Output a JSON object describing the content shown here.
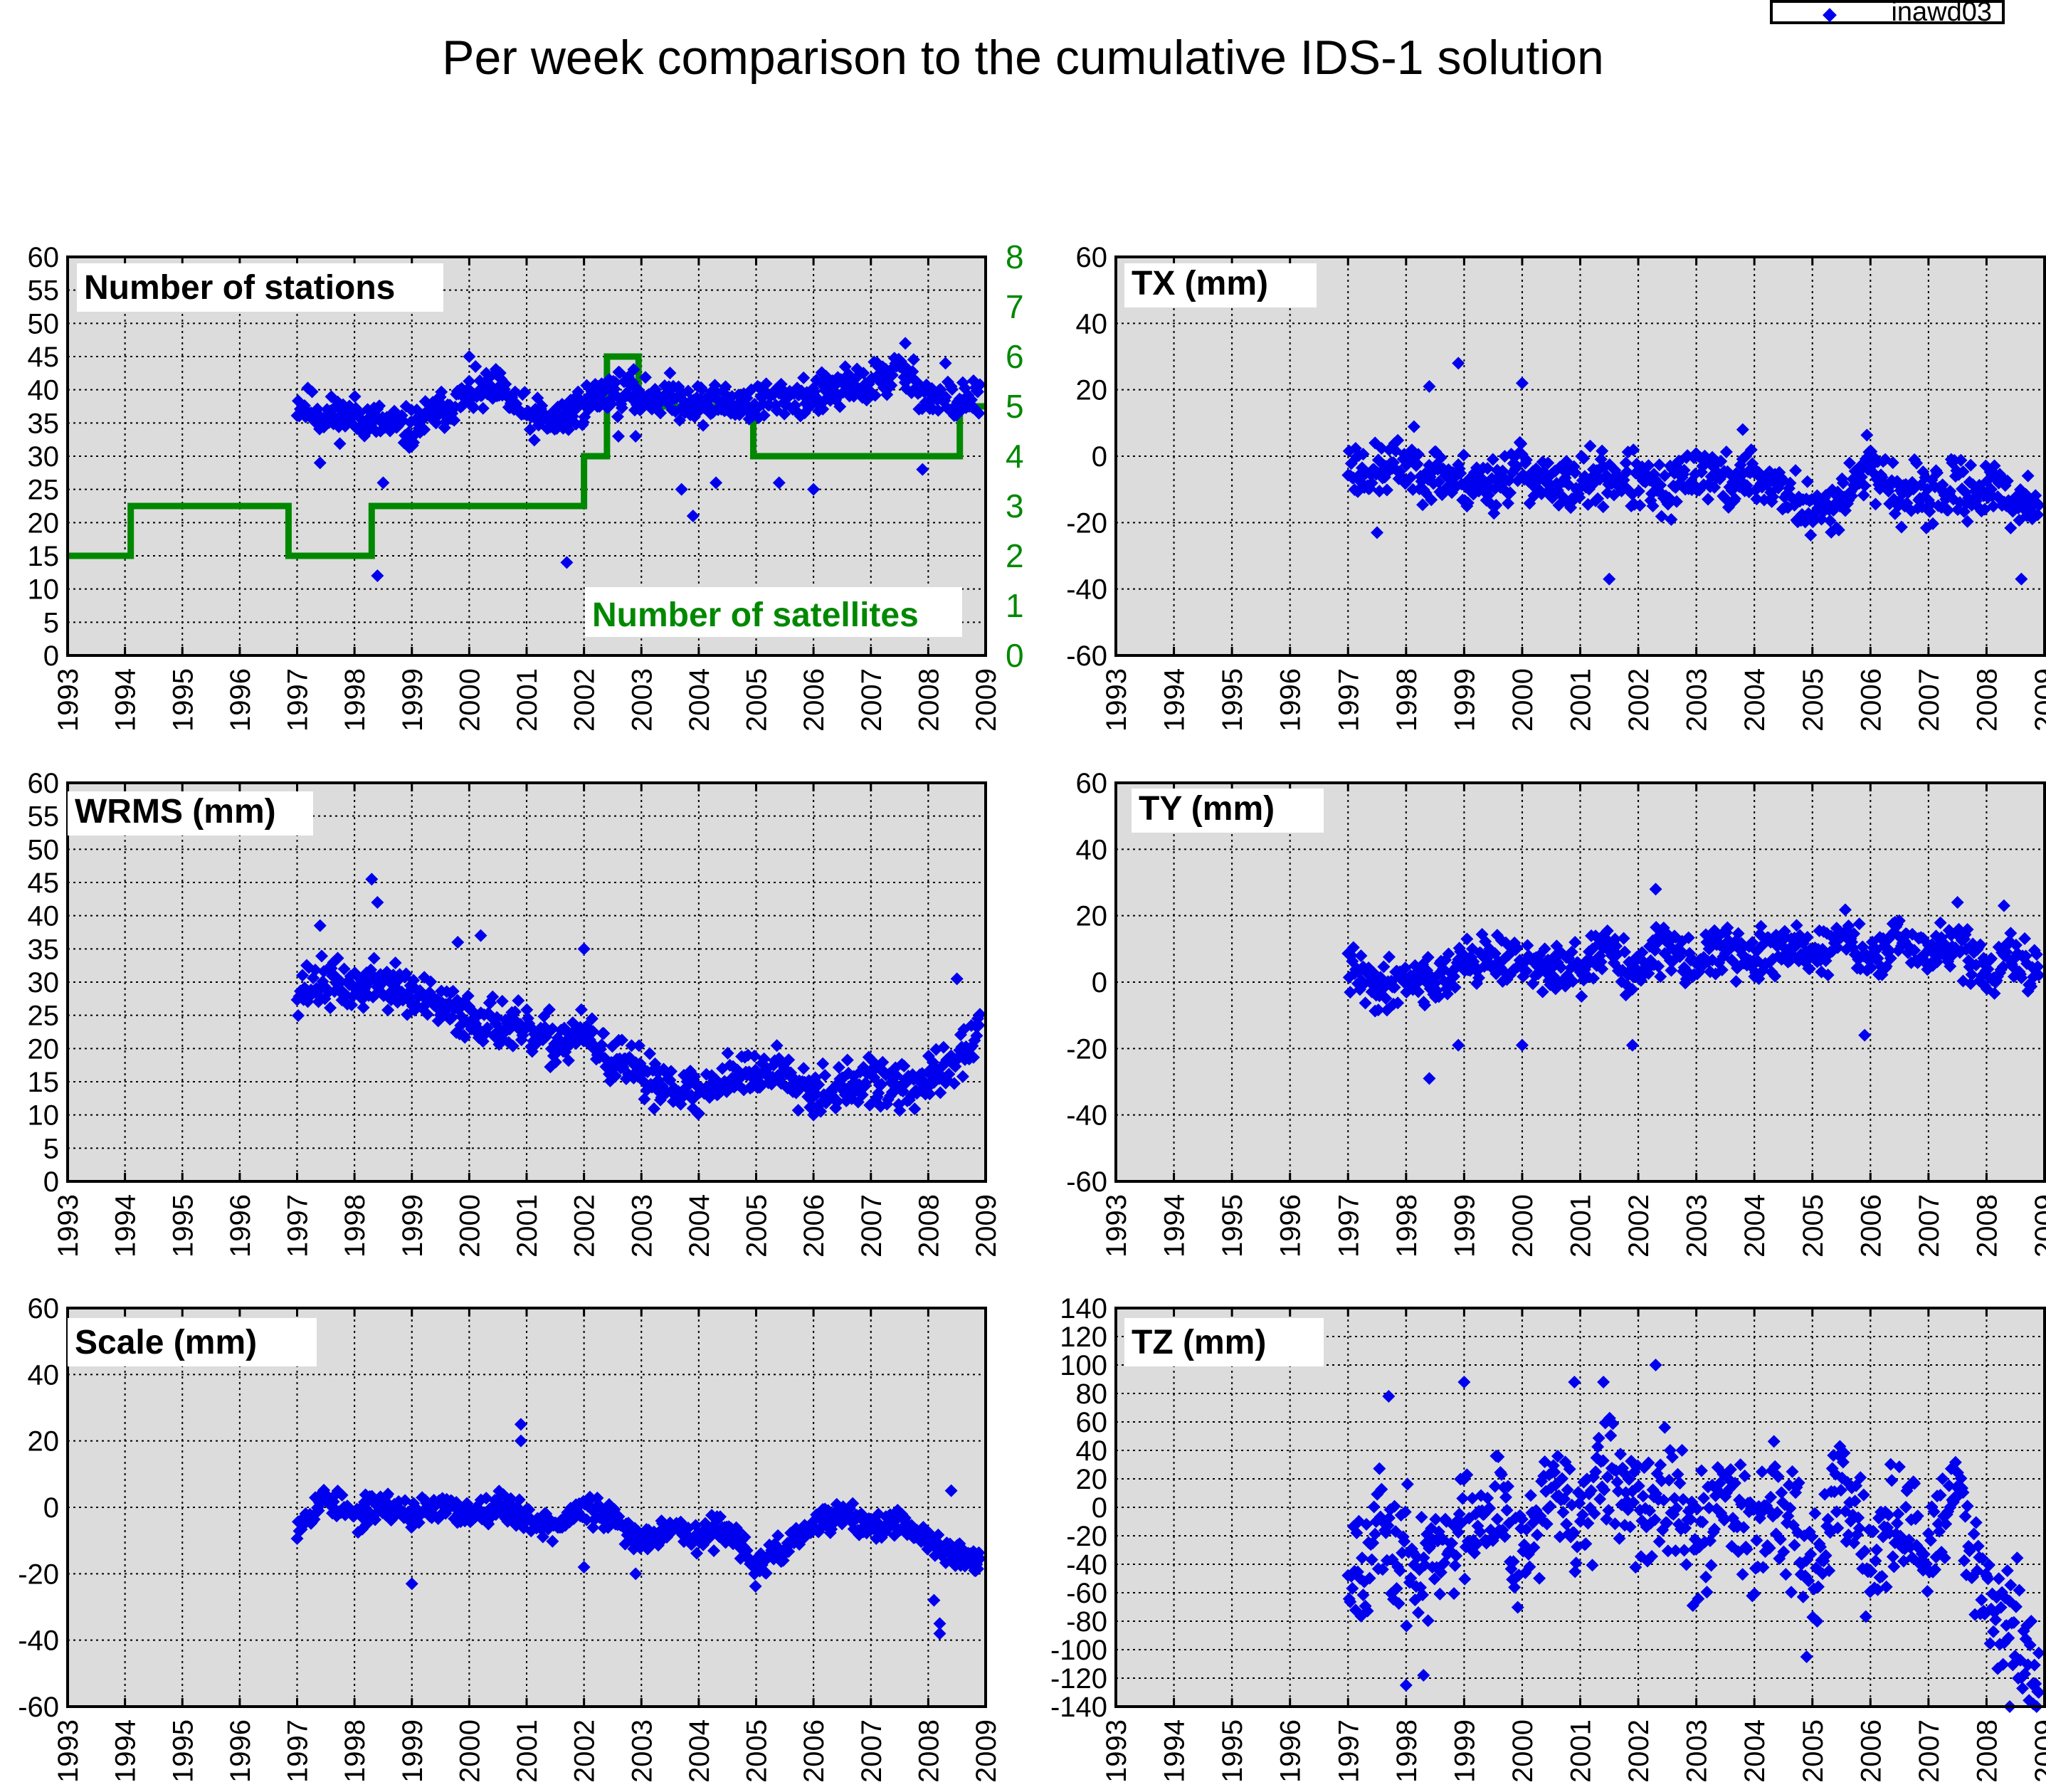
{
  "page_title": "Per week comparison to the cumulative IDS-1 solution",
  "legend": {
    "series_name": "inawd03",
    "marker_color": "#0000ee"
  },
  "colors": {
    "points": "#0000ee",
    "satellites": "#008800",
    "plot_bg": "#dcdcdc",
    "grid": "#000000"
  },
  "chart_data": [
    {
      "id": "stations",
      "type": "scatter",
      "title": "Number of stations",
      "xlim": [
        1993,
        2009
      ],
      "xticks": [
        1993,
        1994,
        1995,
        1996,
        1997,
        1998,
        1999,
        2000,
        2001,
        2002,
        2003,
        2004,
        2005,
        2006,
        2007,
        2008,
        2009
      ],
      "ylim": [
        0,
        60
      ],
      "yticks": [
        0,
        5,
        10,
        15,
        20,
        25,
        30,
        35,
        40,
        45,
        50,
        55,
        60
      ],
      "y2lim": [
        0,
        8
      ],
      "y2ticks": [
        0,
        1,
        2,
        3,
        4,
        5,
        6,
        7,
        8
      ],
      "secondary_series": {
        "name": "Number of satellites",
        "type": "step",
        "color": "#008800",
        "x": [
          1993.0,
          1994.1,
          1994.1,
          1996.85,
          1996.85,
          1998.3,
          1998.3,
          2002.0,
          2002.0,
          2002.4,
          2002.4,
          2002.95,
          2002.95,
          2004.95,
          2004.95,
          2008.55,
          2008.55,
          2009.2
        ],
        "y": [
          2,
          2,
          3,
          3,
          2,
          2,
          3,
          3,
          4,
          4,
          6,
          6,
          5,
          5,
          4,
          4,
          5,
          5
        ]
      },
      "trend": [
        [
          1997.0,
          38
        ],
        [
          1997.5,
          36
        ],
        [
          1998.0,
          36
        ],
        [
          1998.5,
          35
        ],
        [
          1999.0,
          34
        ],
        [
          1999.5,
          37
        ],
        [
          2000.0,
          39
        ],
        [
          2000.5,
          40
        ],
        [
          2001.0,
          36
        ],
        [
          2001.5,
          35
        ],
        [
          2002.0,
          38
        ],
        [
          2002.5,
          40
        ],
        [
          2003.0,
          39
        ],
        [
          2003.5,
          39
        ],
        [
          2004.0,
          38
        ],
        [
          2004.5,
          38
        ],
        [
          2005.0,
          38
        ],
        [
          2005.5,
          39
        ],
        [
          2006.0,
          39
        ],
        [
          2006.5,
          40
        ],
        [
          2007.0,
          41
        ],
        [
          2007.5,
          43
        ],
        [
          2008.0,
          39
        ],
        [
          2008.5,
          38
        ],
        [
          2008.9,
          39
        ]
      ],
      "spread": 2.5,
      "extra_points": [
        [
          1997.4,
          29
        ],
        [
          1998.4,
          12
        ],
        [
          1998.5,
          26
        ],
        [
          2001.7,
          14
        ],
        [
          2002.6,
          33
        ],
        [
          2002.9,
          33
        ],
        [
          2003.7,
          25
        ],
        [
          2003.9,
          21
        ],
        [
          2004.3,
          26
        ],
        [
          2005.4,
          26
        ],
        [
          2006.0,
          25
        ],
        [
          2007.9,
          28
        ],
        [
          2008.3,
          44
        ],
        [
          2000.0,
          45
        ],
        [
          2007.6,
          47
        ]
      ],
      "seed": 11
    },
    {
      "id": "tx",
      "type": "scatter",
      "title": "TX (mm)",
      "xlim": [
        1993,
        2009
      ],
      "xticks": [
        1993,
        1994,
        1995,
        1996,
        1997,
        1998,
        1999,
        2000,
        2001,
        2002,
        2003,
        2004,
        2005,
        2006,
        2007,
        2008,
        2009
      ],
      "ylim": [
        -60,
        60
      ],
      "yticks": [
        -60,
        -40,
        -20,
        0,
        20,
        40,
        60
      ],
      "trend": [
        [
          1997.0,
          -3
        ],
        [
          1997.5,
          -5
        ],
        [
          1998.0,
          -2
        ],
        [
          1998.5,
          -5
        ],
        [
          1999.0,
          -8
        ],
        [
          1999.5,
          -8
        ],
        [
          2000.0,
          -3
        ],
        [
          2000.5,
          -10
        ],
        [
          2001.0,
          -8
        ],
        [
          2001.5,
          -6
        ],
        [
          2002.0,
          -8
        ],
        [
          2002.5,
          -12
        ],
        [
          2003.0,
          -3
        ],
        [
          2003.5,
          -8
        ],
        [
          2004.0,
          -6
        ],
        [
          2004.5,
          -10
        ],
        [
          2005.0,
          -18
        ],
        [
          2005.5,
          -12
        ],
        [
          2006.0,
          -2
        ],
        [
          2006.5,
          -12
        ],
        [
          2007.0,
          -12
        ],
        [
          2007.5,
          -10
        ],
        [
          2008.0,
          -10
        ],
        [
          2008.5,
          -14
        ],
        [
          2008.9,
          -12
        ]
      ],
      "spread": 7,
      "extra_points": [
        [
          1998.9,
          28
        ],
        [
          2000.0,
          22
        ],
        [
          2001.5,
          -37
        ],
        [
          2003.8,
          8
        ],
        [
          2008.6,
          -37
        ],
        [
          1997.5,
          -23
        ],
        [
          1998.4,
          21
        ]
      ],
      "seed": 23
    },
    {
      "id": "wrms",
      "type": "scatter",
      "title": "WRMS (mm)",
      "xlim": [
        1993,
        2009
      ],
      "xticks": [
        1993,
        1994,
        1995,
        1996,
        1997,
        1998,
        1999,
        2000,
        2001,
        2002,
        2003,
        2004,
        2005,
        2006,
        2007,
        2008,
        2009
      ],
      "ylim": [
        0,
        60
      ],
      "yticks": [
        0,
        5,
        10,
        15,
        20,
        25,
        30,
        35,
        40,
        45,
        50,
        55,
        60
      ],
      "trend": [
        [
          1997.0,
          29
        ],
        [
          1997.5,
          30
        ],
        [
          1998.0,
          29
        ],
        [
          1998.5,
          30
        ],
        [
          1999.0,
          28
        ],
        [
          1999.5,
          26
        ],
        [
          2000.0,
          25
        ],
        [
          2000.5,
          24
        ],
        [
          2001.0,
          22
        ],
        [
          2001.5,
          21
        ],
        [
          2002.0,
          22
        ],
        [
          2002.5,
          18
        ],
        [
          2003.0,
          16
        ],
        [
          2003.5,
          15
        ],
        [
          2004.0,
          13
        ],
        [
          2004.5,
          16
        ],
        [
          2005.0,
          16
        ],
        [
          2005.5,
          17
        ],
        [
          2006.0,
          14
        ],
        [
          2006.5,
          14
        ],
        [
          2007.0,
          15
        ],
        [
          2007.5,
          14
        ],
        [
          2008.0,
          15
        ],
        [
          2008.5,
          18
        ],
        [
          2008.9,
          23
        ]
      ],
      "spread": 3,
      "extra_points": [
        [
          1998.3,
          45.5
        ],
        [
          1998.4,
          42
        ],
        [
          1999.8,
          36
        ],
        [
          2000.2,
          37
        ],
        [
          2002.0,
          35
        ],
        [
          2003.9,
          11
        ],
        [
          2006.0,
          10
        ],
        [
          2008.5,
          30.5
        ],
        [
          1997.4,
          38.5
        ]
      ],
      "seed": 37
    },
    {
      "id": "ty",
      "type": "scatter",
      "title": "TY (mm)",
      "xlim": [
        1993,
        2009
      ],
      "xticks": [
        1993,
        1994,
        1995,
        1996,
        1997,
        1998,
        1999,
        2000,
        2001,
        2002,
        2003,
        2004,
        2005,
        2006,
        2007,
        2008,
        2009
      ],
      "ylim": [
        -60,
        60
      ],
      "yticks": [
        -60,
        -40,
        -20,
        0,
        20,
        40,
        60
      ],
      "trend": [
        [
          1997.0,
          4
        ],
        [
          1997.5,
          -2
        ],
        [
          1998.0,
          2
        ],
        [
          1998.5,
          0
        ],
        [
          1999.0,
          6
        ],
        [
          1999.5,
          8
        ],
        [
          2000.0,
          5
        ],
        [
          2000.5,
          4
        ],
        [
          2001.0,
          3
        ],
        [
          2001.5,
          10
        ],
        [
          2002.0,
          2
        ],
        [
          2002.5,
          12
        ],
        [
          2003.0,
          6
        ],
        [
          2003.5,
          10
        ],
        [
          2004.0,
          6
        ],
        [
          2004.5,
          12
        ],
        [
          2005.0,
          8
        ],
        [
          2005.5,
          14
        ],
        [
          2006.0,
          6
        ],
        [
          2006.5,
          12
        ],
        [
          2007.0,
          8
        ],
        [
          2007.5,
          12
        ],
        [
          2008.0,
          2
        ],
        [
          2008.5,
          8
        ],
        [
          2008.9,
          0
        ]
      ],
      "spread": 6,
      "extra_points": [
        [
          1998.4,
          -29
        ],
        [
          2000.0,
          -19
        ],
        [
          2002.3,
          28
        ],
        [
          2001.9,
          -19
        ],
        [
          2005.9,
          -16
        ],
        [
          1998.9,
          -19
        ],
        [
          2007.5,
          24
        ],
        [
          2008.3,
          23
        ]
      ],
      "seed": 41
    },
    {
      "id": "scale",
      "type": "scatter",
      "title": "Scale (mm)",
      "xlim": [
        1993,
        2009
      ],
      "xticks": [
        1993,
        1994,
        1995,
        1996,
        1997,
        1998,
        1999,
        2000,
        2001,
        2002,
        2003,
        2004,
        2005,
        2006,
        2007,
        2008,
        2009
      ],
      "ylim": [
        -60,
        60
      ],
      "yticks": [
        -60,
        -40,
        -20,
        0,
        20,
        40,
        60
      ],
      "trend": [
        [
          1997.0,
          -5
        ],
        [
          1997.5,
          3
        ],
        [
          1998.0,
          -3
        ],
        [
          1998.5,
          1
        ],
        [
          1999.0,
          -2
        ],
        [
          1999.5,
          0
        ],
        [
          2000.0,
          -2
        ],
        [
          2000.5,
          1
        ],
        [
          2001.0,
          -3
        ],
        [
          2001.5,
          -6
        ],
        [
          2002.0,
          0
        ],
        [
          2002.5,
          -4
        ],
        [
          2003.0,
          -10
        ],
        [
          2003.5,
          -5
        ],
        [
          2004.0,
          -10
        ],
        [
          2004.5,
          -5
        ],
        [
          2005.0,
          -19
        ],
        [
          2005.5,
          -12
        ],
        [
          2006.0,
          -6
        ],
        [
          2006.5,
          -2
        ],
        [
          2007.0,
          -6
        ],
        [
          2007.5,
          -5
        ],
        [
          2008.0,
          -10
        ],
        [
          2008.5,
          -14
        ],
        [
          2008.9,
          -17
        ]
      ],
      "spread": 3.5,
      "extra_points": [
        [
          2000.9,
          25
        ],
        [
          2000.9,
          20
        ],
        [
          1999.0,
          -23
        ],
        [
          2008.2,
          -38
        ],
        [
          2008.2,
          -35
        ],
        [
          2008.4,
          5
        ],
        [
          2002.0,
          -18
        ],
        [
          2002.9,
          -20
        ],
        [
          2008.1,
          -28
        ]
      ],
      "seed": 53
    },
    {
      "id": "tz",
      "type": "scatter",
      "title": "TZ (mm)",
      "xlim": [
        1993,
        2009
      ],
      "xticks": [
        1993,
        1994,
        1995,
        1996,
        1997,
        1998,
        1999,
        2000,
        2001,
        2002,
        2003,
        2004,
        2005,
        2006,
        2007,
        2008,
        2009
      ],
      "ylim": [
        -140,
        140
      ],
      "yticks": [
        -140,
        -120,
        -100,
        -80,
        -60,
        -40,
        -20,
        0,
        20,
        40,
        60,
        80,
        100,
        120,
        140
      ],
      "trend": [
        [
          1997.0,
          -40
        ],
        [
          1997.5,
          -20
        ],
        [
          1998.0,
          -40
        ],
        [
          1998.5,
          -40
        ],
        [
          1999.0,
          -10
        ],
        [
          1999.5,
          10
        ],
        [
          2000.0,
          -30
        ],
        [
          2000.5,
          10
        ],
        [
          2001.0,
          -10
        ],
        [
          2001.5,
          20
        ],
        [
          2002.0,
          -10
        ],
        [
          2002.5,
          30
        ],
        [
          2003.0,
          -30
        ],
        [
          2003.5,
          20
        ],
        [
          2004.0,
          -20
        ],
        [
          2004.5,
          10
        ],
        [
          2005.0,
          -40
        ],
        [
          2005.5,
          20
        ],
        [
          2006.0,
          -40
        ],
        [
          2006.5,
          -10
        ],
        [
          2007.0,
          -30
        ],
        [
          2007.5,
          10
        ],
        [
          2008.0,
          -60
        ],
        [
          2008.5,
          -90
        ],
        [
          2008.9,
          -115
        ]
      ],
      "spread": 35,
      "extra_points": [
        [
          2002.3,
          100
        ],
        [
          1998.0,
          -125
        ],
        [
          2008.4,
          -140
        ],
        [
          1997.7,
          78
        ],
        [
          2000.9,
          88
        ],
        [
          1999.0,
          88
        ],
        [
          2001.4,
          88
        ],
        [
          2008.9,
          -130
        ],
        [
          2004.9,
          -105
        ],
        [
          1998.3,
          -118
        ]
      ],
      "seed": 67
    }
  ]
}
